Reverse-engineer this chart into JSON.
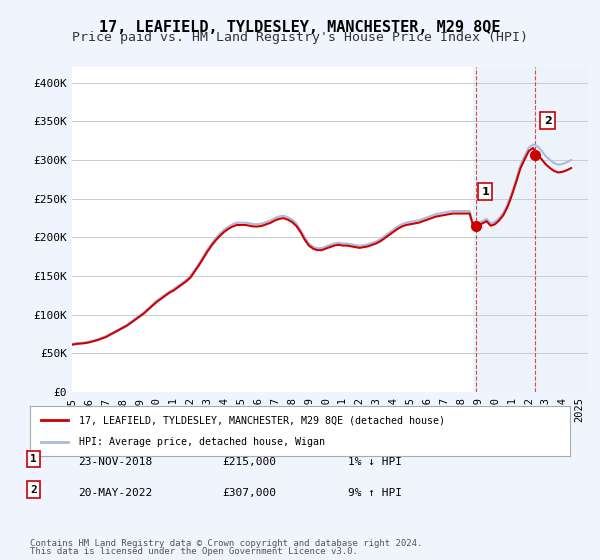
{
  "title": "17, LEAFIELD, TYLDESLEY, MANCHESTER, M29 8QE",
  "subtitle": "Price paid vs. HM Land Registry's House Price Index (HPI)",
  "title_fontsize": 11,
  "subtitle_fontsize": 9.5,
  "ylabel_ticks": [
    "£0",
    "£50K",
    "£100K",
    "£150K",
    "£200K",
    "£250K",
    "£300K",
    "£350K",
    "£400K"
  ],
  "ytick_values": [
    0,
    50000,
    100000,
    150000,
    200000,
    250000,
    300000,
    350000,
    400000
  ],
  "ylim": [
    0,
    420000
  ],
  "xlim_start": 1995.0,
  "xlim_end": 2025.5,
  "background_color": "#f0f4ff",
  "plot_bg_color": "#ffffff",
  "grid_color": "#cccccc",
  "hpi_color": "#aabbdd",
  "price_color": "#cc0000",
  "marker1_color": "#cc0000",
  "marker2_color": "#cc0000",
  "shade_color": "#dde8f8",
  "legend_label1": "17, LEAFIELD, TYLDESLEY, MANCHESTER, M29 8QE (detached house)",
  "legend_label2": "HPI: Average price, detached house, Wigan",
  "annot1_num": "1",
  "annot1_date": "23-NOV-2018",
  "annot1_price": "£215,000",
  "annot1_hpi": "1% ↓ HPI",
  "annot2_num": "2",
  "annot2_date": "20-MAY-2022",
  "annot2_price": "£307,000",
  "annot2_hpi": "9% ↑ HPI",
  "footnote1": "Contains HM Land Registry data © Crown copyright and database right 2024.",
  "footnote2": "This data is licensed under the Open Government Licence v3.0.",
  "sale1_x": 2018.9,
  "sale1_y": 215000,
  "sale2_x": 2022.38,
  "sale2_y": 307000,
  "hpi_x": [
    1995.0,
    1995.25,
    1995.5,
    1995.75,
    1996.0,
    1996.25,
    1996.5,
    1996.75,
    1997.0,
    1997.25,
    1997.5,
    1997.75,
    1998.0,
    1998.25,
    1998.5,
    1998.75,
    1999.0,
    1999.25,
    1999.5,
    1999.75,
    2000.0,
    2000.25,
    2000.5,
    2000.75,
    2001.0,
    2001.25,
    2001.5,
    2001.75,
    2002.0,
    2002.25,
    2002.5,
    2002.75,
    2003.0,
    2003.25,
    2003.5,
    2003.75,
    2004.0,
    2004.25,
    2004.5,
    2004.75,
    2005.0,
    2005.25,
    2005.5,
    2005.75,
    2006.0,
    2006.25,
    2006.5,
    2006.75,
    2007.0,
    2007.25,
    2007.5,
    2007.75,
    2008.0,
    2008.25,
    2008.5,
    2008.75,
    2009.0,
    2009.25,
    2009.5,
    2009.75,
    2010.0,
    2010.25,
    2010.5,
    2010.75,
    2011.0,
    2011.25,
    2011.5,
    2011.75,
    2012.0,
    2012.25,
    2012.5,
    2012.75,
    2013.0,
    2013.25,
    2013.5,
    2013.75,
    2014.0,
    2014.25,
    2014.5,
    2014.75,
    2015.0,
    2015.25,
    2015.5,
    2015.75,
    2016.0,
    2016.25,
    2016.5,
    2016.75,
    2017.0,
    2017.25,
    2017.5,
    2017.75,
    2018.0,
    2018.25,
    2018.5,
    2018.75,
    2019.0,
    2019.25,
    2019.5,
    2019.75,
    2020.0,
    2020.25,
    2020.5,
    2020.75,
    2021.0,
    2021.25,
    2021.5,
    2021.75,
    2022.0,
    2022.25,
    2022.5,
    2022.75,
    2023.0,
    2023.25,
    2023.5,
    2023.75,
    2024.0,
    2024.25,
    2024.5
  ],
  "hpi_y": [
    62000,
    63000,
    63500,
    64000,
    65000,
    66500,
    68000,
    70000,
    72000,
    75000,
    78000,
    81000,
    84000,
    87000,
    91000,
    95000,
    99000,
    103000,
    108000,
    113000,
    118000,
    122000,
    126000,
    130000,
    133000,
    137000,
    141000,
    145000,
    150000,
    158000,
    166000,
    175000,
    184000,
    192000,
    199000,
    205000,
    210000,
    214000,
    217000,
    219000,
    219000,
    219000,
    218000,
    217000,
    217000,
    218000,
    220000,
    222000,
    225000,
    227000,
    228000,
    226000,
    223000,
    218000,
    210000,
    200000,
    192000,
    188000,
    186000,
    186000,
    188000,
    190000,
    192000,
    193000,
    192000,
    192000,
    191000,
    190000,
    189000,
    190000,
    191000,
    193000,
    195000,
    198000,
    202000,
    206000,
    210000,
    214000,
    217000,
    219000,
    220000,
    221000,
    222000,
    224000,
    226000,
    228000,
    230000,
    231000,
    232000,
    233000,
    234000,
    234000,
    234000,
    234000,
    234000,
    215000,
    218000,
    221000,
    224000,
    218000,
    220000,
    225000,
    232000,
    243000,
    258000,
    275000,
    293000,
    305000,
    316000,
    320000,
    318000,
    312000,
    305000,
    300000,
    296000,
    294000,
    295000,
    297000,
    300000
  ],
  "shade_x1": 2018.7,
  "shade_x2": 2025.5,
  "marker1_annotx": 2018.9,
  "marker2_annotx": 2022.38,
  "xtick_years": [
    1995,
    1996,
    1997,
    1998,
    1999,
    2000,
    2001,
    2002,
    2003,
    2004,
    2005,
    2006,
    2007,
    2008,
    2009,
    2010,
    2011,
    2012,
    2013,
    2014,
    2015,
    2016,
    2017,
    2018,
    2019,
    2020,
    2021,
    2022,
    2023,
    2024,
    2025
  ]
}
